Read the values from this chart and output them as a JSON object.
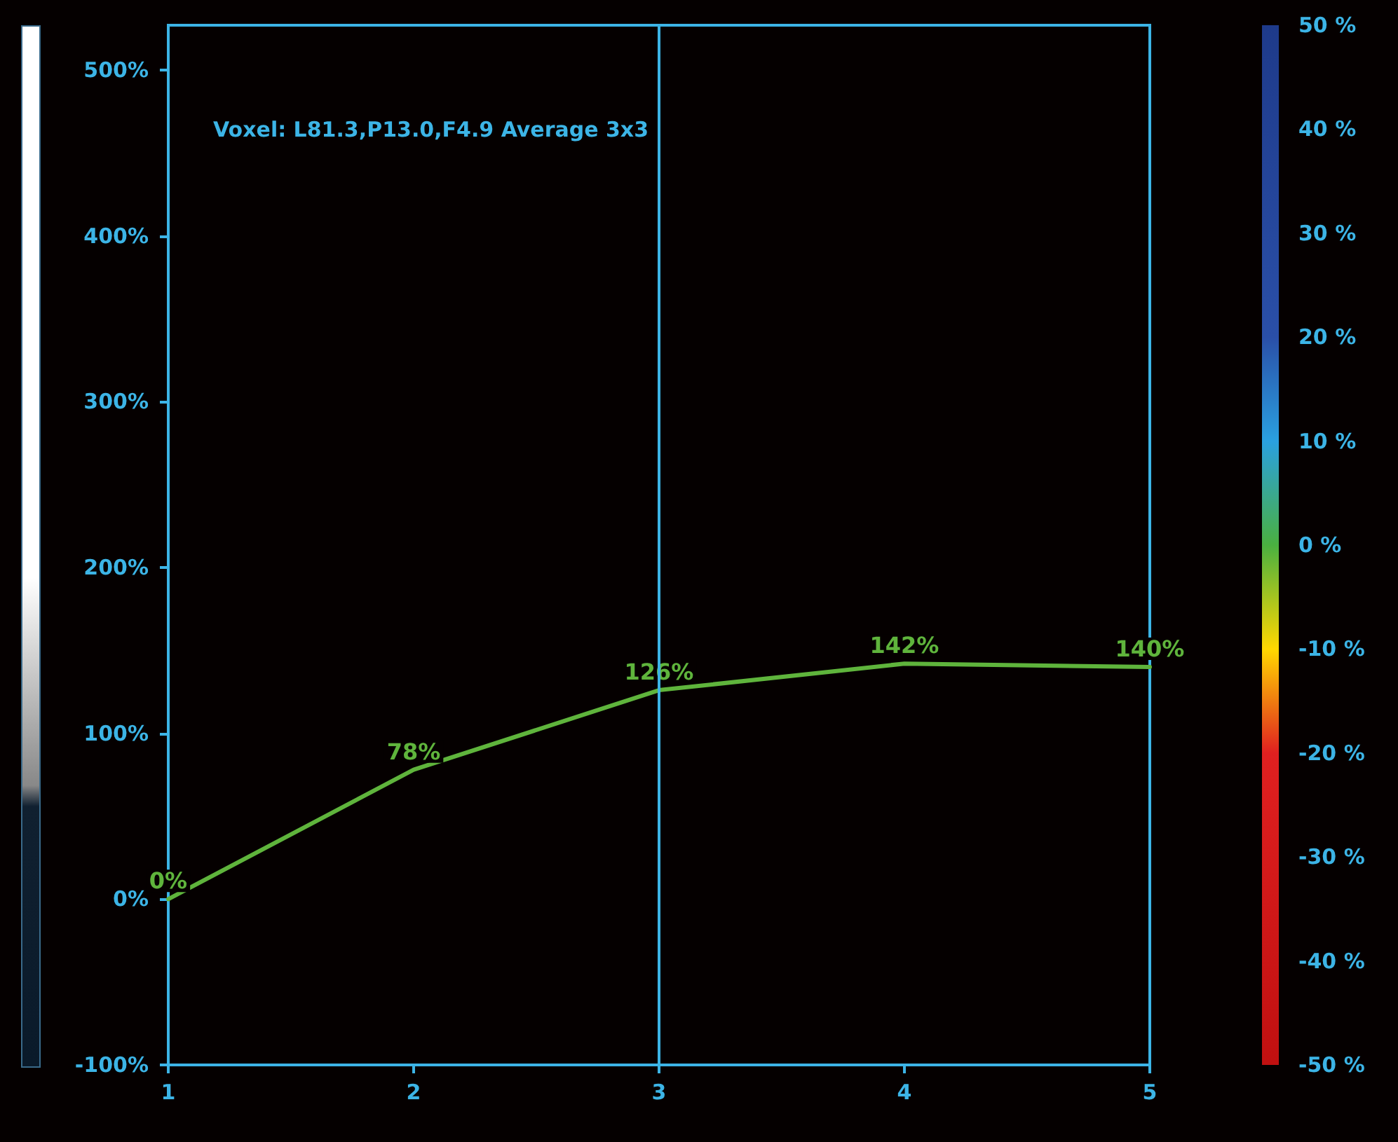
{
  "chart_data": {
    "type": "line",
    "x": [
      1,
      2,
      3,
      4,
      5
    ],
    "series": [
      {
        "color": "#5fb43c",
        "values": [
          0,
          78,
          126,
          142,
          140
        ],
        "value_labels": [
          "0%",
          "78%",
          "126%",
          "142%",
          "140%"
        ]
      }
    ],
    "xlim": [
      1,
      5
    ],
    "xticks": [
      1,
      2,
      3,
      4,
      5
    ],
    "ylim": [
      -100,
      527
    ],
    "yticks": [
      {
        "value": -100,
        "label": "-100%"
      },
      {
        "value": 0,
        "label": "0%"
      },
      {
        "value": 100,
        "label": "100%"
      },
      {
        "value": 200,
        "label": "200%"
      },
      {
        "value": 300,
        "label": "300%"
      },
      {
        "value": 400,
        "label": "400%"
      },
      {
        "value": 500,
        "label": "500%"
      }
    ],
    "y2lim": [
      -50,
      50
    ],
    "y2ticks": [
      {
        "value": -50,
        "label": "-50 %"
      },
      {
        "value": -40,
        "label": "-40 %"
      },
      {
        "value": -30,
        "label": "-30 %"
      },
      {
        "value": -20,
        "label": "-20 %"
      },
      {
        "value": -10,
        "label": "-10 %"
      },
      {
        "value": 0,
        "label": "0 %"
      },
      {
        "value": 10,
        "label": "10 %"
      },
      {
        "value": 20,
        "label": "20 %"
      },
      {
        "value": 30,
        "label": "30 %"
      },
      {
        "value": 40,
        "label": "40 %"
      },
      {
        "value": 50,
        "label": "50 %"
      }
    ],
    "ref_lines": [
      {
        "axis": "x",
        "value": 3,
        "color": "#3cb4e6"
      }
    ],
    "annotations": [
      "Voxel: L81.3,P13.0,F4.9 Average 3x3"
    ],
    "grid": false,
    "marker": "none",
    "line_style": "solid"
  }
}
